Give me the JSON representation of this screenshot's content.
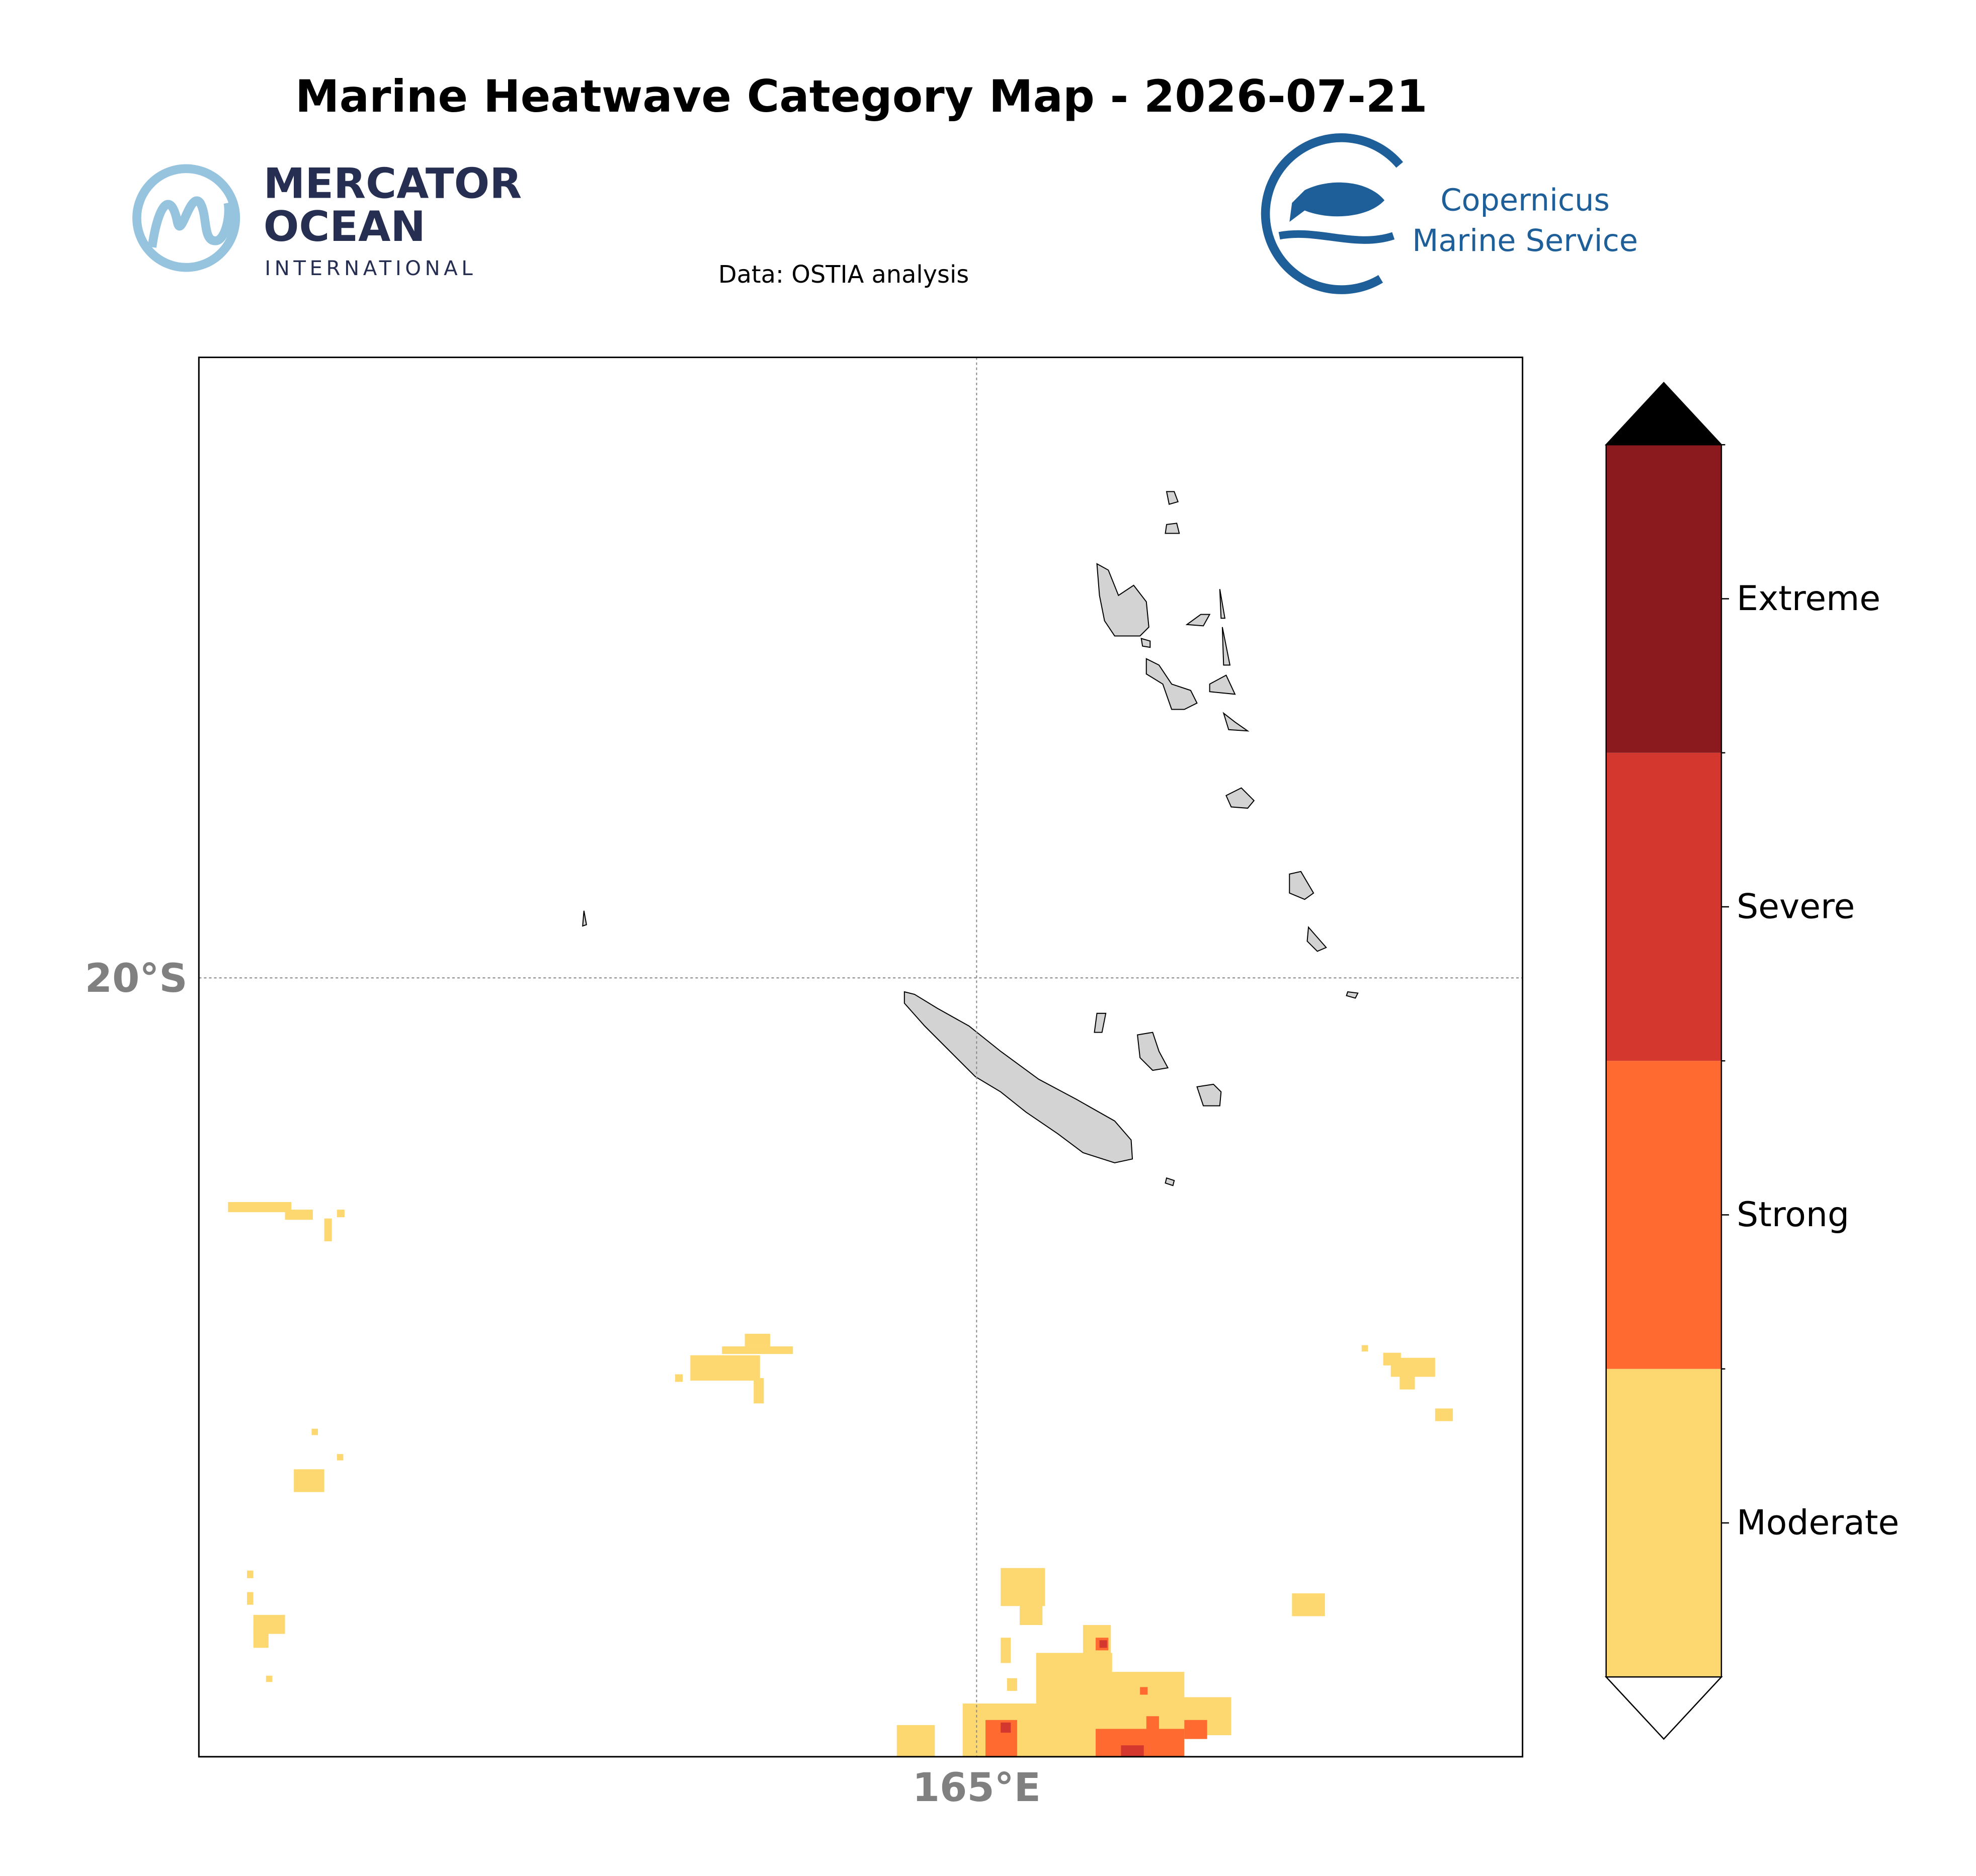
{
  "header": {
    "title": "Marine Heatwave Category Map - 2026-07-21",
    "source": "Data: OSTIA analysis"
  },
  "logos": {
    "mercator": {
      "line1": "MERCATOR",
      "line2": "OCEAN",
      "line3": "INTERNATIONAL"
    },
    "copernicus": {
      "line1": "Copernicus",
      "line2": "Marine Service"
    }
  },
  "map": {
    "lat_label": "20°S",
    "lon_label": "165°E"
  },
  "colorbar": {
    "categories": [
      "Moderate",
      "Strong",
      "Severe",
      "Extreme"
    ],
    "colors": [
      "#fdd870",
      "#fe6a30",
      "#d3372e",
      "#8b1a1e"
    ],
    "over_color": "#000000",
    "under_color": "#ffffff"
  }
}
